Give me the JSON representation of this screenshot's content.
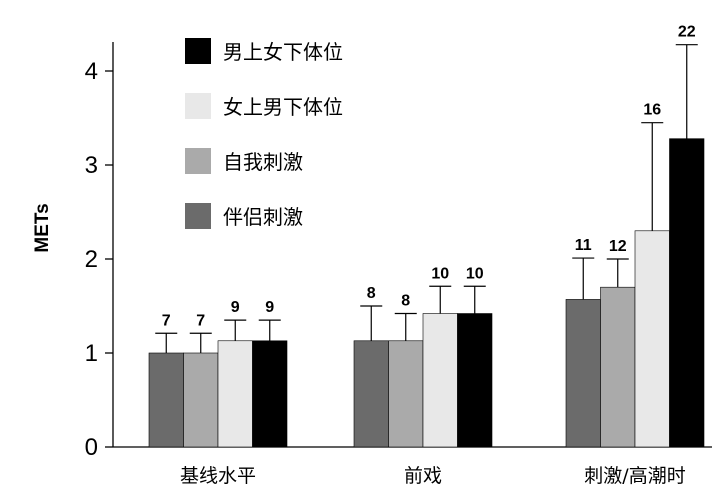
{
  "chart_data": {
    "type": "bar",
    "ylabel": "METs",
    "ylim": [
      0,
      4.2
    ],
    "yticks": [
      0,
      1,
      2,
      3,
      4
    ],
    "grid": false,
    "legend_position": "top-left",
    "categories": [
      "基线水平",
      "前戏",
      "刺激/高潮时"
    ],
    "draw_order": [
      "伴侣刺激",
      "自我刺激",
      "女上男下体位",
      "男上女下体位"
    ],
    "series": [
      {
        "name": "男上女下体位",
        "color": "#000000",
        "values": [
          1.13,
          1.42,
          3.28
        ],
        "error": [
          0.22,
          0.29,
          1.0
        ],
        "counts": [
          "9",
          "10",
          "22"
        ]
      },
      {
        "name": "女上男下体位",
        "color": "#e8e8e8",
        "values": [
          1.13,
          1.42,
          2.3
        ],
        "error": [
          0.22,
          0.29,
          1.15
        ],
        "counts": [
          "9",
          "10",
          "16"
        ]
      },
      {
        "name": "自我刺激",
        "color": "#aaaaaa",
        "values": [
          1.0,
          1.13,
          1.7
        ],
        "error": [
          0.21,
          0.29,
          0.3
        ],
        "counts": [
          "7",
          "8",
          "12"
        ]
      },
      {
        "name": "伴侣刺激",
        "color": "#6b6b6b",
        "values": [
          1.0,
          1.13,
          1.57
        ],
        "error": [
          0.21,
          0.37,
          0.44
        ],
        "counts": [
          "7",
          "8",
          "11"
        ]
      }
    ]
  }
}
